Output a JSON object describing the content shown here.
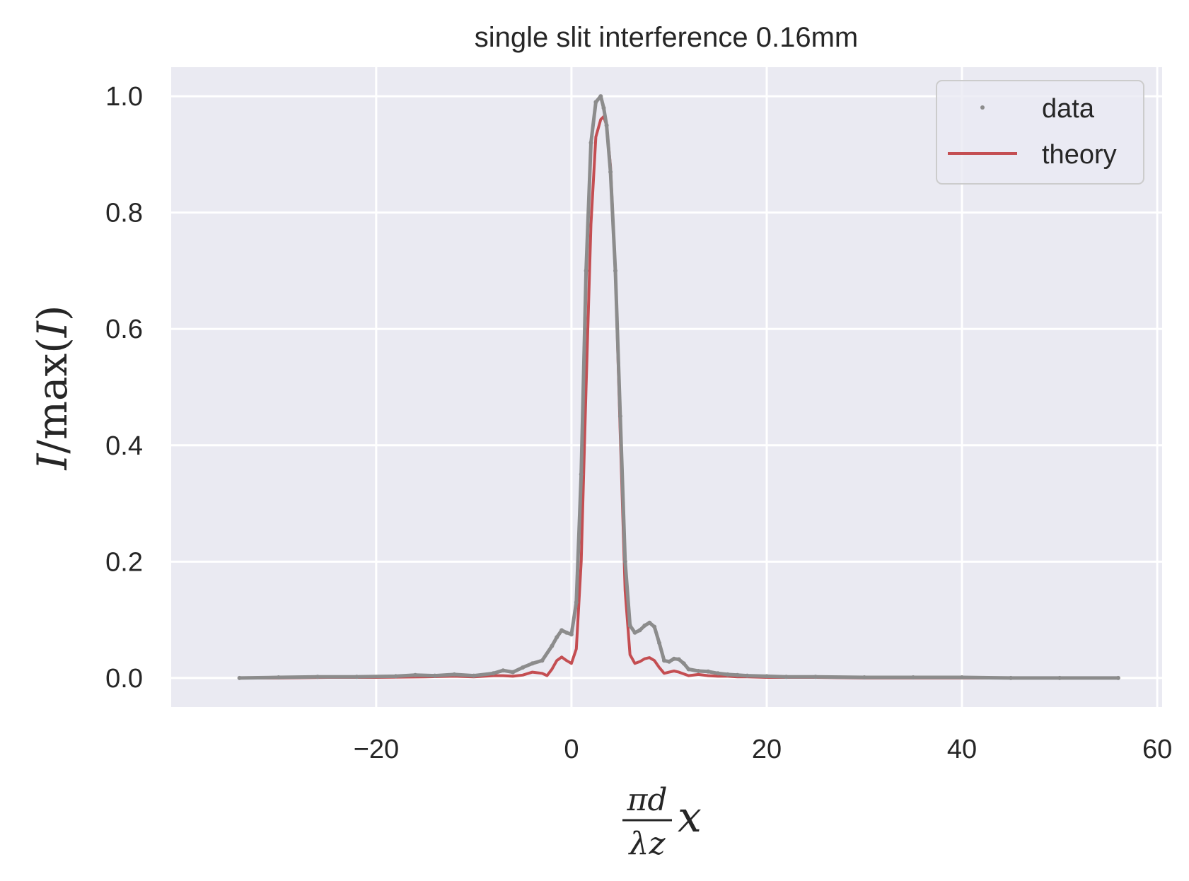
{
  "chart_data": {
    "type": "line",
    "title": "single slit interference 0.16mm",
    "xlabel": {
      "numerator": "πd",
      "denominator": "λz",
      "suffix": "x"
    },
    "ylabel": {
      "var": "I",
      "slash": "/",
      "func": "max",
      "open": "(",
      "arg": "I",
      "close": ")"
    },
    "xlim": [
      -41,
      60.5
    ],
    "ylim": [
      -0.05,
      1.05
    ],
    "xticks": [
      -20,
      0,
      20,
      40,
      60
    ],
    "xtick_labels": [
      "−20",
      "0",
      "20",
      "40",
      "60"
    ],
    "yticks": [
      0.0,
      0.2,
      0.4,
      0.6,
      0.8,
      1.0
    ],
    "ytick_labels": [
      "0.0",
      "0.2",
      "0.4",
      "0.6",
      "0.8",
      "1.0"
    ],
    "grid": true,
    "legend_position": "top-right",
    "series": [
      {
        "name": "data",
        "style": "points",
        "color": "#8c8c8c",
        "x": [
          -34,
          -30,
          -26,
          -22,
          -18,
          -16,
          -14,
          -12,
          -10,
          -8,
          -7,
          -6,
          -5,
          -4,
          -3,
          -2,
          -1.5,
          -1,
          -0.5,
          0,
          0.5,
          1,
          1.5,
          2,
          2.5,
          3,
          3.3,
          3.6,
          4,
          4.5,
          5,
          5.5,
          6,
          6.5,
          7,
          7.5,
          8,
          8.5,
          9,
          9.5,
          10,
          10.5,
          11,
          11.5,
          12,
          13,
          14,
          15,
          16,
          17,
          18,
          20,
          22,
          25,
          30,
          35,
          40,
          45,
          50,
          56
        ],
        "y": [
          0.0,
          0.001,
          0.002,
          0.002,
          0.003,
          0.005,
          0.004,
          0.006,
          0.004,
          0.008,
          0.013,
          0.01,
          0.018,
          0.025,
          0.03,
          0.055,
          0.07,
          0.082,
          0.078,
          0.075,
          0.13,
          0.35,
          0.7,
          0.92,
          0.99,
          1.0,
          0.98,
          0.95,
          0.87,
          0.7,
          0.45,
          0.2,
          0.09,
          0.078,
          0.082,
          0.09,
          0.095,
          0.088,
          0.06,
          0.03,
          0.028,
          0.033,
          0.032,
          0.025,
          0.015,
          0.012,
          0.011,
          0.008,
          0.006,
          0.005,
          0.004,
          0.003,
          0.002,
          0.002,
          0.001,
          0.001,
          0.001,
          0.0,
          0.0,
          0.0
        ]
      },
      {
        "name": "theory",
        "style": "line",
        "color": "#c44e52",
        "x": [
          -34,
          -30,
          -25,
          -20,
          -15,
          -12,
          -10,
          -8,
          -7,
          -6,
          -5,
          -4,
          -3,
          -2.5,
          -2,
          -1.5,
          -1,
          -0.5,
          0,
          0.5,
          1,
          1.5,
          2,
          2.5,
          3,
          3.3,
          3.6,
          4,
          4.5,
          5,
          5.5,
          6,
          6.5,
          7,
          7.5,
          8,
          8.5,
          9,
          9.5,
          10,
          10.5,
          11,
          11.5,
          12,
          13,
          14,
          15,
          16,
          17,
          18,
          20,
          25,
          30,
          40,
          50,
          56
        ],
        "y": [
          0.0,
          0.0,
          0.001,
          0.001,
          0.002,
          0.003,
          0.002,
          0.004,
          0.004,
          0.003,
          0.005,
          0.01,
          0.008,
          0.004,
          0.015,
          0.03,
          0.036,
          0.03,
          0.025,
          0.05,
          0.2,
          0.5,
          0.78,
          0.93,
          0.96,
          0.965,
          0.95,
          0.88,
          0.7,
          0.42,
          0.15,
          0.04,
          0.025,
          0.028,
          0.033,
          0.035,
          0.03,
          0.018,
          0.008,
          0.01,
          0.012,
          0.01,
          0.007,
          0.004,
          0.006,
          0.004,
          0.003,
          0.003,
          0.002,
          0.002,
          0.001,
          0.001,
          0.0,
          0.0,
          0.0,
          0.0
        ]
      }
    ]
  }
}
